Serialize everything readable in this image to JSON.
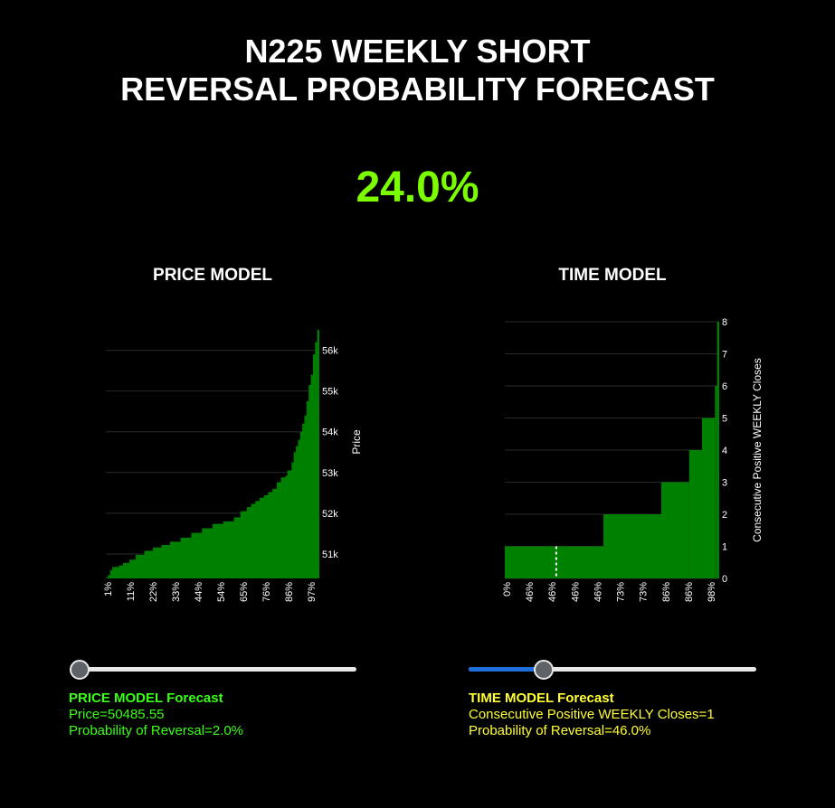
{
  "page": {
    "title_line1": "N225 WEEKLY SHORT",
    "title_line2": "REVERSAL PROBABILITY FORECAST",
    "headline_value": "24.0%"
  },
  "colors": {
    "background": "#000000",
    "bars": "#008000",
    "headline": "#7cfc00",
    "price_info": "#39ff14",
    "time_info": "#ffff33",
    "slider_fill": "#1e6fd9"
  },
  "chart_data": [
    {
      "type": "area",
      "title": "PRICE MODEL",
      "ylabel": "Price",
      "xlabel": "",
      "ylim": [
        50400,
        57100
      ],
      "y_ticks": [
        51000,
        52000,
        53000,
        54000,
        55000,
        56000
      ],
      "y_tick_labels": [
        "51k",
        "52k",
        "53k",
        "54k",
        "55k",
        "56k"
      ],
      "x_tick_labels": [
        "1%",
        "11%",
        "22%",
        "33%",
        "44%",
        "54%",
        "65%",
        "76%",
        "86%",
        "97%"
      ],
      "x_range_pct": [
        0,
        100
      ],
      "grid": true,
      "y_axis_side": "right",
      "curve": [
        [
          0,
          50420
        ],
        [
          1,
          50480
        ],
        [
          2,
          50600
        ],
        [
          3,
          50680
        ],
        [
          6,
          50720
        ],
        [
          8,
          50780
        ],
        [
          11,
          50860
        ],
        [
          14,
          50980
        ],
        [
          18,
          51080
        ],
        [
          22,
          51160
        ],
        [
          26,
          51220
        ],
        [
          30,
          51300
        ],
        [
          35,
          51400
        ],
        [
          40,
          51520
        ],
        [
          45,
          51630
        ],
        [
          50,
          51740
        ],
        [
          55,
          51800
        ],
        [
          60,
          51900
        ],
        [
          63,
          52050
        ],
        [
          66,
          52150
        ],
        [
          68,
          52230
        ],
        [
          70,
          52300
        ],
        [
          72,
          52380
        ],
        [
          74,
          52440
        ],
        [
          76,
          52520
        ],
        [
          78,
          52600
        ],
        [
          80,
          52760
        ],
        [
          82,
          52880
        ],
        [
          84,
          52920
        ],
        [
          85,
          53050
        ],
        [
          87,
          53250
        ],
        [
          88,
          53500
        ],
        [
          89,
          53650
        ],
        [
          90,
          53800
        ],
        [
          91,
          54000
        ],
        [
          92,
          54200
        ],
        [
          93,
          54400
        ],
        [
          94,
          54750
        ],
        [
          95,
          55150
        ],
        [
          96,
          55400
        ],
        [
          97,
          55900
        ],
        [
          98,
          56200
        ],
        [
          99,
          56500
        ],
        [
          100,
          57000
        ]
      ]
    },
    {
      "type": "area",
      "title": "TIME MODEL",
      "ylabel": "Consecutive Positive WEEKLY Closes",
      "xlabel": "",
      "ylim": [
        0,
        8
      ],
      "y_ticks": [
        0,
        1,
        2,
        3,
        4,
        5,
        6,
        7,
        8
      ],
      "y_tick_labels": [
        "0",
        "1",
        "2",
        "3",
        "4",
        "5",
        "6",
        "7",
        "8"
      ],
      "x_tick_labels": [
        "0%",
        "46%",
        "46%",
        "46%",
        "46%",
        "73%",
        "73%",
        "86%",
        "86%",
        "98%"
      ],
      "x_range_pct": [
        0,
        100
      ],
      "grid": true,
      "y_axis_side": "right",
      "steps": [
        {
          "from": 0,
          "to": 46,
          "value": 1
        },
        {
          "from": 46,
          "to": 73,
          "value": 2
        },
        {
          "from": 73,
          "to": 86,
          "value": 3
        },
        {
          "from": 86,
          "to": 92,
          "value": 4
        },
        {
          "from": 92,
          "to": 98,
          "value": 5
        },
        {
          "from": 98,
          "to": 99,
          "value": 6
        },
        {
          "from": 99,
          "to": 100,
          "value": 8
        }
      ],
      "marker_pct": 24
    }
  ],
  "price_model": {
    "title": "PRICE MODEL",
    "slider_value": 0.0,
    "forecast_header": "PRICE MODEL Forecast",
    "price_line": "Price=50485.55",
    "probability_line": "Probability of Reversal=2.0%"
  },
  "time_model": {
    "title": "TIME MODEL",
    "slider_value": 0.26,
    "forecast_header": "TIME MODEL Forecast",
    "closes_line": "Consecutive Positive WEEKLY Closes=1",
    "probability_line": "Probability of Reversal=46.0%"
  }
}
